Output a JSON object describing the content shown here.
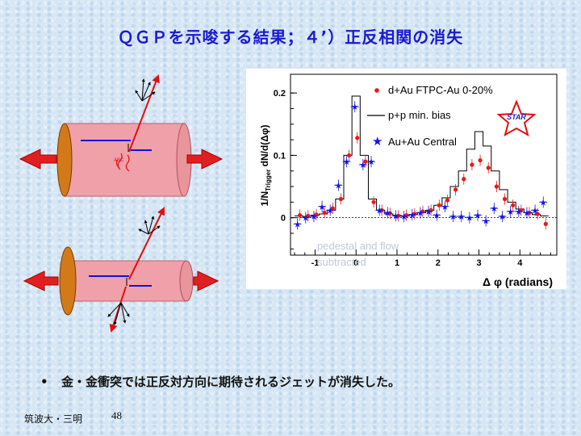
{
  "slide": {
    "title": "ＱＧＰを示唆する結果；４’）正反相関の消失",
    "bullet_symbol": "•",
    "bullet_text": "金・金衝突では正反対方向に期待されるジェットが消失した。",
    "footer_author": "筑波大・三明",
    "page_number": "48"
  },
  "chart_data": {
    "type": "scatter",
    "xlabel": "Δ φ (radians)",
    "ylabel": "1/N_Trigger dN/d(Δφ)",
    "xlim": [
      -1.6,
      4.9
    ],
    "ylim": [
      -0.06,
      0.23
    ],
    "x_ticks": [
      -1,
      0,
      1,
      2,
      3,
      4
    ],
    "x_tick_labels": [
      "-1",
      "0",
      "1",
      "2",
      "3",
      "4"
    ],
    "y_ticks": [
      0,
      0.1,
      0.2
    ],
    "y_tick_labels": [
      "0",
      "0.1",
      "0.2"
    ],
    "logo": "STAR",
    "annotation": "pedestal and flow subtracted",
    "legend": [
      {
        "label": "d+Au FTPC-Au 0-20%",
        "marker": "circle",
        "color": "#e81818"
      },
      {
        "label": "p+p min. bias",
        "marker": "line",
        "color": "#111111"
      },
      {
        "label": "Au+Au Central",
        "marker": "star",
        "color": "#1515e0"
      }
    ],
    "x": [
      -1.4,
      -1.2,
      -1.0,
      -0.8,
      -0.6,
      -0.4,
      -0.2,
      0.0,
      0.2,
      0.4,
      0.6,
      0.8,
      1.0,
      1.2,
      1.4,
      1.6,
      1.8,
      2.0,
      2.2,
      2.4,
      2.6,
      2.8,
      3.0,
      3.2,
      3.4,
      3.6,
      3.8,
      4.0,
      4.2,
      4.4,
      4.6
    ],
    "series": [
      {
        "name": "p+p min. bias",
        "values": [
          0.003,
          0.002,
          0.004,
          0.006,
          0.012,
          0.03,
          0.1,
          0.195,
          0.1,
          0.03,
          0.012,
          0.006,
          0.004,
          0.003,
          0.005,
          0.008,
          0.012,
          0.02,
          0.032,
          0.05,
          0.075,
          0.11,
          0.138,
          0.115,
          0.075,
          0.045,
          0.025,
          0.014,
          0.008,
          0.005,
          0.003
        ]
      },
      {
        "name": "d+Au FTPC-Au 0-20%",
        "values": [
          0.004,
          0.003,
          0.005,
          0.008,
          0.015,
          0.03,
          0.1,
          0.128,
          0.09,
          0.025,
          0.012,
          0.007,
          0.003,
          0.004,
          0.006,
          0.01,
          0.012,
          0.02,
          0.028,
          0.045,
          0.062,
          0.085,
          0.092,
          0.08,
          0.05,
          0.03,
          0.02,
          0.012,
          0.008,
          0.006,
          -0.01
        ]
      },
      {
        "name": "Au+Au Central",
        "values": [
          -0.01,
          0.0,
          0.002,
          0.018,
          0.012,
          0.052,
          0.09,
          0.178,
          0.085,
          0.09,
          0.012,
          0.008,
          0.003,
          0.002,
          0.005,
          0.008,
          0.01,
          0.004,
          0.018,
          0.002,
          0.002,
          0.0,
          0.004,
          -0.005,
          0.015,
          0.002,
          0.01,
          0.01,
          0.008,
          0.012,
          0.025
        ]
      }
    ]
  },
  "diagram": {
    "label": "jet collision diagram"
  }
}
